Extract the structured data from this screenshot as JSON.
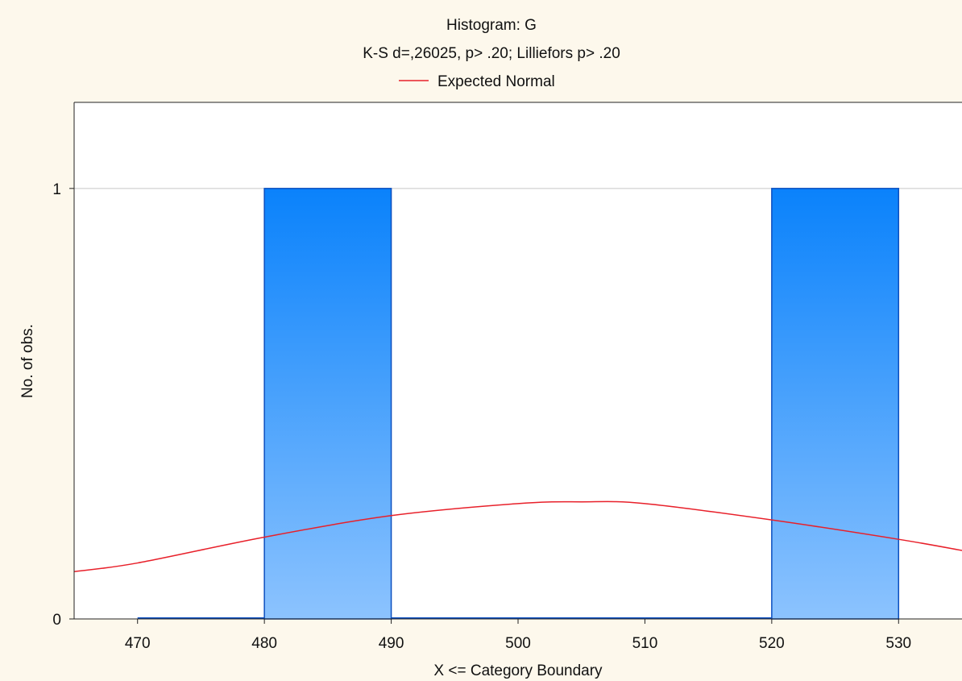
{
  "chart_data": {
    "type": "bar",
    "title": "Histogram: G",
    "subtitle": "K-S d=,26025, p> .20; Lilliefors p> .20",
    "xlabel": "X <= Category Boundary",
    "ylabel": "No. of obs.",
    "xlim": [
      465,
      535
    ],
    "ylim": [
      0,
      1.2
    ],
    "x_ticks": [
      "470",
      "480",
      "490",
      "500",
      "510",
      "520",
      "530"
    ],
    "x_tick_values": [
      470,
      480,
      490,
      500,
      510,
      520,
      530
    ],
    "y_ticks": [
      "0",
      "1"
    ],
    "y_tick_values": [
      0,
      1
    ],
    "grid": "horizontal at y=1",
    "legend": {
      "placement": "top-center",
      "entries": [
        {
          "name": "Expected Normal",
          "color": "#e8202a"
        }
      ]
    },
    "bins": [
      {
        "from": 470,
        "to": 480,
        "count": 0
      },
      {
        "from": 480,
        "to": 490,
        "count": 1
      },
      {
        "from": 490,
        "to": 500,
        "count": 0
      },
      {
        "from": 500,
        "to": 510,
        "count": 0
      },
      {
        "from": 510,
        "to": 520,
        "count": 0
      },
      {
        "from": 520,
        "to": 530,
        "count": 1
      }
    ],
    "series": [
      {
        "name": "Expected Normal",
        "type": "line",
        "color": "#e8202a",
        "points": [
          [
            465,
            0.11
          ],
          [
            470,
            0.13
          ],
          [
            480,
            0.19
          ],
          [
            490,
            0.24
          ],
          [
            500,
            0.268
          ],
          [
            505,
            0.272
          ],
          [
            510,
            0.268
          ],
          [
            520,
            0.23
          ],
          [
            530,
            0.185
          ],
          [
            535,
            0.159
          ]
        ]
      }
    ]
  },
  "colors": {
    "background": "#fdf8ec",
    "plot_area": "#ffffff",
    "bar_top": "#0a82fb",
    "bar_bottom": "#8cc3fe",
    "bar_stroke": "#0c4fbf",
    "curve": "#e8202a",
    "grid": "#c8c8c8"
  }
}
